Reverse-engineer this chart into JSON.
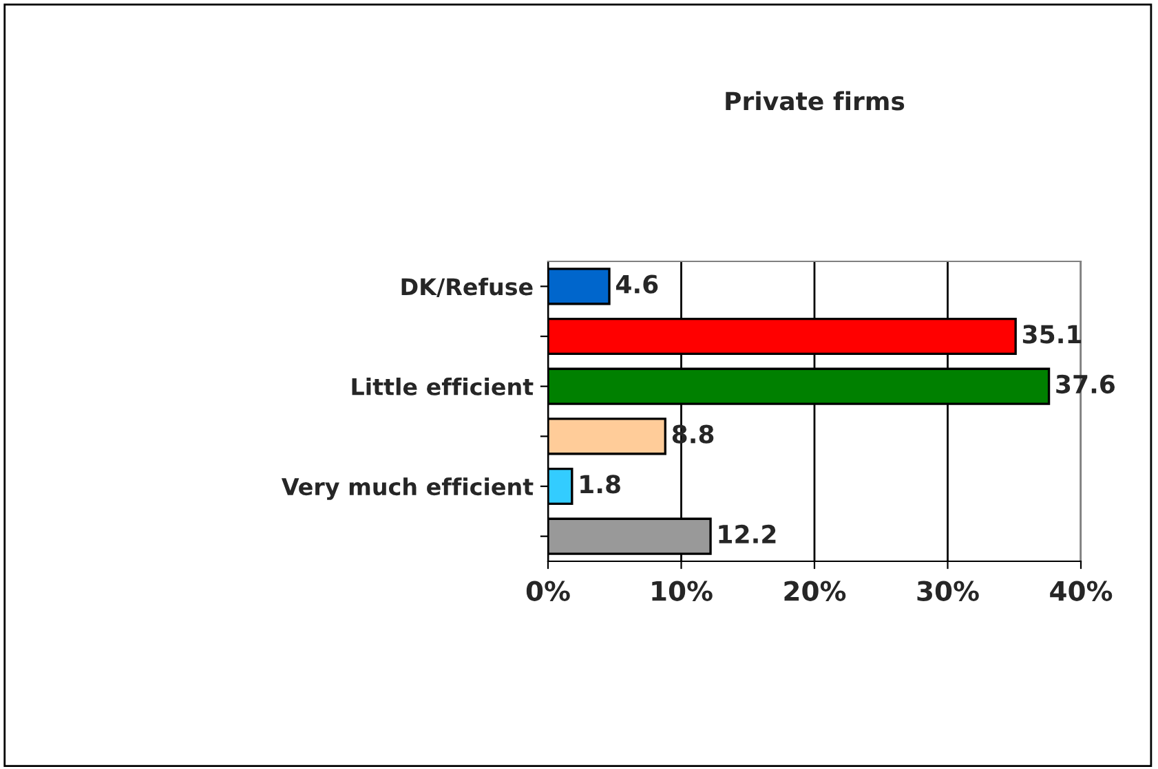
{
  "chart_data": {
    "type": "bar",
    "orientation": "horizontal",
    "title": "Private firms",
    "categories": [
      "DK/Refuse",
      null,
      "Little efficient",
      null,
      "Very much efficient",
      null
    ],
    "values": [
      4.6,
      35.1,
      37.6,
      8.8,
      1.8,
      12.2
    ],
    "colors": [
      "#0066cc",
      "#ff0000",
      "#008000",
      "#ffcc99",
      "#33ccff",
      "#999999"
    ],
    "xlim": [
      0,
      40
    ],
    "xticks": [
      {
        "value": 0,
        "label": "0%"
      },
      {
        "value": 10,
        "label": "10%"
      },
      {
        "value": 20,
        "label": "20%"
      },
      {
        "value": 30,
        "label": "30%"
      },
      {
        "value": 40,
        "label": "40%"
      }
    ],
    "grid": "x",
    "data_labels": true,
    "legend": false
  }
}
